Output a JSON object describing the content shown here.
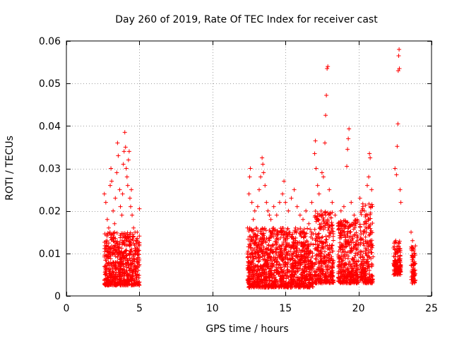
{
  "chart_data": {
    "type": "scatter",
    "title": "Day 260 of 2019, Rate Of TEC Index for receiver cast",
    "xlabel": "GPS time / hours",
    "ylabel": "ROTI / TECUs",
    "xlim": [
      0,
      25
    ],
    "ylim": [
      0,
      0.06
    ],
    "x_ticks": [
      0,
      5,
      10,
      15,
      20,
      25
    ],
    "x_tick_labels": [
      "0",
      "5",
      "10",
      "15",
      "20",
      "25"
    ],
    "y_ticks": [
      0,
      0.01,
      0.02,
      0.03,
      0.04,
      0.05,
      0.06
    ],
    "y_tick_labels": [
      "0",
      "0.01",
      "0.02",
      "0.03",
      "0.04",
      "0.05",
      "0.06"
    ],
    "grid": true,
    "marker": "+",
    "color": "#ff0000",
    "series": [
      {
        "name": "ROTI",
        "points": [
          [
            2.6,
            0.024
          ],
          [
            2.7,
            0.022
          ],
          [
            2.8,
            0.018
          ],
          [
            2.9,
            0.016
          ],
          [
            3.0,
            0.026
          ],
          [
            3.05,
            0.03
          ],
          [
            3.1,
            0.027
          ],
          [
            3.2,
            0.02
          ],
          [
            3.3,
            0.017
          ],
          [
            3.35,
            0.023
          ],
          [
            3.45,
            0.029
          ],
          [
            3.5,
            0.036
          ],
          [
            3.55,
            0.033
          ],
          [
            3.65,
            0.025
          ],
          [
            3.7,
            0.021
          ],
          [
            3.8,
            0.019
          ],
          [
            3.85,
            0.024
          ],
          [
            3.9,
            0.031
          ],
          [
            3.95,
            0.034
          ],
          [
            4.0,
            0.0385
          ],
          [
            4.05,
            0.035
          ],
          [
            4.1,
            0.03
          ],
          [
            4.15,
            0.028
          ],
          [
            4.2,
            0.026
          ],
          [
            4.25,
            0.032
          ],
          [
            4.3,
            0.034
          ],
          [
            4.35,
            0.023
          ],
          [
            4.4,
            0.021
          ],
          [
            4.45,
            0.025
          ],
          [
            4.5,
            0.019
          ],
          [
            4.6,
            0.016
          ],
          [
            4.7,
            0.015
          ],
          [
            4.8,
            0.013
          ],
          [
            4.9,
            0.011
          ],
          [
            5.0,
            0.0205
          ],
          [
            12.4,
            0.016
          ],
          [
            12.5,
            0.024
          ],
          [
            12.55,
            0.028
          ],
          [
            12.6,
            0.03
          ],
          [
            12.7,
            0.022
          ],
          [
            12.8,
            0.018
          ],
          [
            12.9,
            0.02
          ],
          [
            13.0,
            0.016
          ],
          [
            13.1,
            0.021
          ],
          [
            13.2,
            0.025
          ],
          [
            13.3,
            0.028
          ],
          [
            13.4,
            0.0325
          ],
          [
            13.45,
            0.031
          ],
          [
            13.5,
            0.029
          ],
          [
            13.6,
            0.026
          ],
          [
            13.7,
            0.022
          ],
          [
            13.8,
            0.02
          ],
          [
            13.9,
            0.019
          ],
          [
            14.0,
            0.018
          ],
          [
            14.2,
            0.021
          ],
          [
            14.4,
            0.019
          ],
          [
            14.6,
            0.022
          ],
          [
            14.8,
            0.024
          ],
          [
            14.9,
            0.027
          ],
          [
            15.0,
            0.022
          ],
          [
            15.2,
            0.02
          ],
          [
            15.4,
            0.023
          ],
          [
            15.6,
            0.025
          ],
          [
            15.8,
            0.021
          ],
          [
            16.0,
            0.019
          ],
          [
            16.2,
            0.018
          ],
          [
            16.4,
            0.02
          ],
          [
            16.6,
            0.017
          ],
          [
            16.8,
            0.022
          ],
          [
            17.0,
            0.0335
          ],
          [
            17.05,
            0.0365
          ],
          [
            17.1,
            0.03
          ],
          [
            17.2,
            0.026
          ],
          [
            17.3,
            0.024
          ],
          [
            17.5,
            0.029
          ],
          [
            17.6,
            0.028
          ],
          [
            17.7,
            0.036
          ],
          [
            17.75,
            0.0425
          ],
          [
            17.8,
            0.0472
          ],
          [
            17.85,
            0.0535
          ],
          [
            17.9,
            0.054
          ],
          [
            18.0,
            0.025
          ],
          [
            18.2,
            0.022
          ],
          [
            18.4,
            0.019
          ],
          [
            18.6,
            0.017
          ],
          [
            18.8,
            0.02
          ],
          [
            19.0,
            0.021
          ],
          [
            19.2,
            0.0305
          ],
          [
            19.25,
            0.0345
          ],
          [
            19.3,
            0.037
          ],
          [
            19.35,
            0.0393
          ],
          [
            19.5,
            0.022
          ],
          [
            19.7,
            0.019
          ],
          [
            19.9,
            0.018
          ],
          [
            20.1,
            0.023
          ],
          [
            20.3,
            0.021
          ],
          [
            20.5,
            0.019
          ],
          [
            20.6,
            0.026
          ],
          [
            20.7,
            0.028
          ],
          [
            20.75,
            0.0335
          ],
          [
            20.8,
            0.0325
          ],
          [
            20.9,
            0.025
          ],
          [
            22.5,
            0.03
          ],
          [
            22.6,
            0.0285
          ],
          [
            22.65,
            0.0352
          ],
          [
            22.7,
            0.0405
          ],
          [
            22.72,
            0.053
          ],
          [
            22.75,
            0.0565
          ],
          [
            22.78,
            0.058
          ],
          [
            22.8,
            0.0535
          ],
          [
            22.85,
            0.025
          ],
          [
            22.9,
            0.022
          ],
          [
            23.6,
            0.015
          ],
          [
            23.7,
            0.013
          ],
          [
            23.8,
            0.011
          ]
        ]
      }
    ],
    "dense_clusters": [
      {
        "x_range": [
          2.6,
          5.0
        ],
        "y_range": [
          0.0025,
          0.015
        ]
      },
      {
        "x_range": [
          12.4,
          16.9
        ],
        "y_range": [
          0.002,
          0.016
        ]
      },
      {
        "x_range": [
          17.0,
          18.3
        ],
        "y_range": [
          0.003,
          0.02
        ]
      },
      {
        "x_range": [
          18.6,
          20.0
        ],
        "y_range": [
          0.003,
          0.018
        ]
      },
      {
        "x_range": [
          20.1,
          21.0
        ],
        "y_range": [
          0.003,
          0.022
        ]
      },
      {
        "x_range": [
          22.4,
          22.9
        ],
        "y_range": [
          0.005,
          0.013
        ]
      },
      {
        "x_range": [
          23.6,
          23.9
        ],
        "y_range": [
          0.003,
          0.012
        ]
      }
    ]
  }
}
